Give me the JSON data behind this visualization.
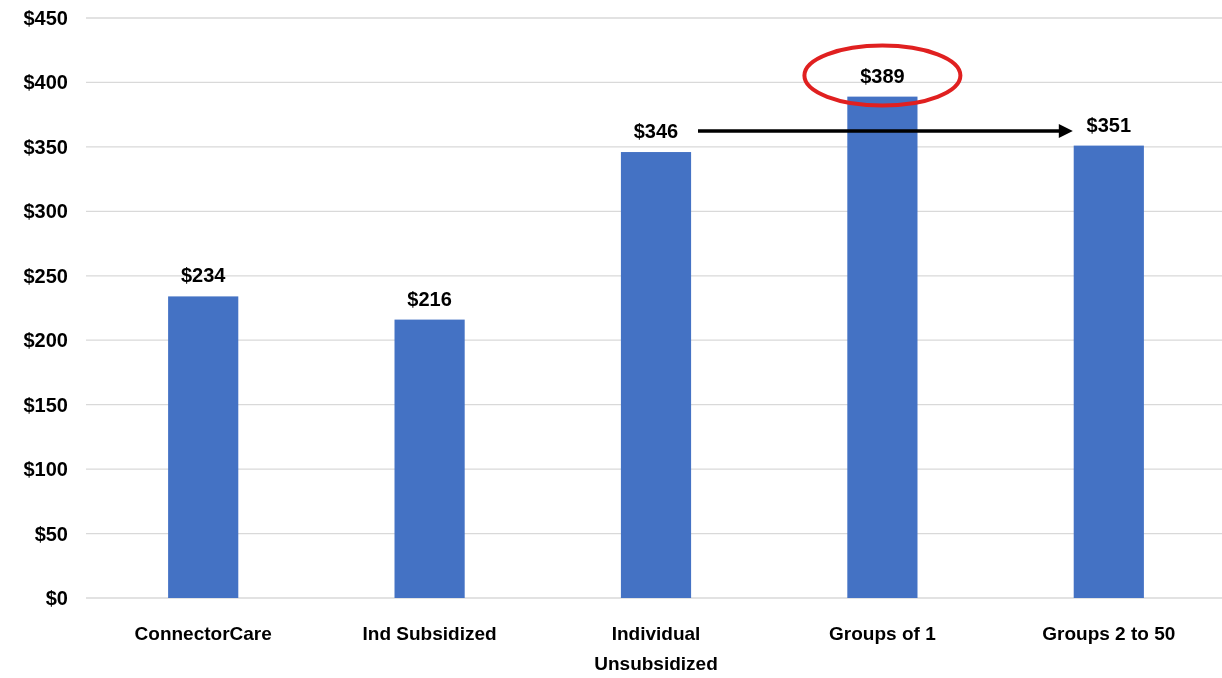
{
  "chart_data": {
    "type": "bar",
    "categories": [
      "ConnectorCare",
      "Ind Subsidized",
      "Individual Unsubsidized",
      "Groups of 1",
      "Groups 2 to 50"
    ],
    "values": [
      234,
      216,
      346,
      389,
      351
    ],
    "value_labels": [
      "$234",
      "$216",
      "$346",
      "$389",
      "$351"
    ],
    "color": "#4472c4",
    "ylim": [
      0,
      450
    ],
    "yticks": [
      {
        "value": 0,
        "label": "$0"
      },
      {
        "value": 50,
        "label": "$50"
      },
      {
        "value": 100,
        "label": "$100"
      },
      {
        "value": 150,
        "label": "$150"
      },
      {
        "value": 200,
        "label": "$200"
      },
      {
        "value": 250,
        "label": "$250"
      },
      {
        "value": 300,
        "label": "$300"
      },
      {
        "value": 350,
        "label": "$350"
      },
      {
        "value": 400,
        "label": "$400"
      },
      {
        "value": 450,
        "label": "$450"
      }
    ],
    "grid": "y"
  }
}
